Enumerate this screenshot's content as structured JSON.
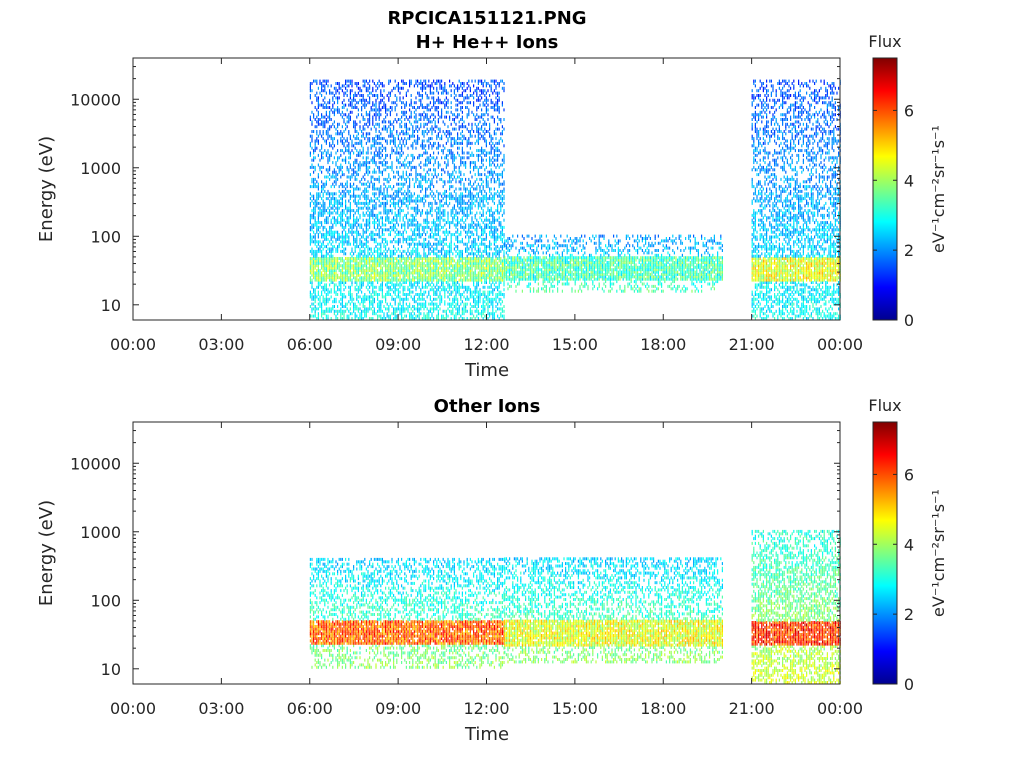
{
  "figure": {
    "title_line1": "RPCICA151121.PNG"
  },
  "panels": [
    {
      "title": "H+ He++ Ions",
      "xlabel": "Time",
      "ylabel": "Energy (eV)",
      "colorbar": {
        "title": "Flux",
        "units": "eV⁻¹cm⁻²sr⁻¹s⁻¹",
        "ticks": [
          "0",
          "2",
          "4",
          "6"
        ]
      }
    },
    {
      "title": "Other Ions",
      "xlabel": "Time",
      "ylabel": "Energy (eV)",
      "colorbar": {
        "title": "Flux",
        "units": "eV⁻¹cm⁻²sr⁻¹s⁻¹",
        "ticks": [
          "0",
          "2",
          "4",
          "6"
        ]
      }
    }
  ],
  "chart_data": [
    {
      "type": "heatmap",
      "title": "H+ He++ Ions",
      "xlabel": "Time",
      "ylabel": "Energy (eV)",
      "x_ticks": [
        "00:00",
        "03:00",
        "06:00",
        "09:00",
        "12:00",
        "15:00",
        "18:00",
        "21:00",
        "00:00"
      ],
      "x_range_hours": [
        0,
        24
      ],
      "y_scale": "log",
      "y_ticks": [
        10,
        100,
        1000,
        10000
      ],
      "y_range": [
        6,
        40000
      ],
      "colormap": "jet",
      "color_range": [
        0,
        7.5
      ],
      "colorbar_ticks": [
        0,
        2,
        4,
        6
      ],
      "colorbar_label": "Flux",
      "data_segments": [
        {
          "start_h": 6.0,
          "end_h": 12.6,
          "emin": 6,
          "emax": 18000,
          "low_band_flux": 3.8,
          "high_flux": 1.5,
          "density": 0.65
        },
        {
          "start_h": 12.6,
          "end_h": 20.0,
          "emin": 15,
          "emax": 100,
          "low_band_flux": 3.3,
          "high_flux": 2.0,
          "density": 0.35
        },
        {
          "start_h": 21.0,
          "end_h": 24.0,
          "emin": 6,
          "emax": 18000,
          "low_band_flux": 4.5,
          "high_flux": 1.5,
          "density": 0.65
        }
      ],
      "grid": false
    },
    {
      "type": "heatmap",
      "title": "Other Ions",
      "xlabel": "Time",
      "ylabel": "Energy (eV)",
      "x_ticks": [
        "00:00",
        "03:00",
        "06:00",
        "09:00",
        "12:00",
        "15:00",
        "18:00",
        "21:00",
        "00:00"
      ],
      "x_range_hours": [
        0,
        24
      ],
      "y_scale": "log",
      "y_ticks": [
        10,
        100,
        1000,
        10000
      ],
      "y_range": [
        6,
        40000
      ],
      "colormap": "jet",
      "color_range": [
        0,
        7.5
      ],
      "colorbar_ticks": [
        0,
        2,
        4,
        6
      ],
      "colorbar_label": "Flux",
      "data_segments": [
        {
          "start_h": 6.0,
          "end_h": 12.6,
          "emin": 10,
          "emax": 400,
          "low_band_flux": 5.8,
          "high_flux": 2.5,
          "density": 0.5
        },
        {
          "start_h": 12.6,
          "end_h": 20.0,
          "emin": 12,
          "emax": 400,
          "low_band_flux": 4.5,
          "high_flux": 2.5,
          "density": 0.5
        },
        {
          "start_h": 21.0,
          "end_h": 24.0,
          "emin": 6,
          "emax": 1000,
          "low_band_flux": 6.2,
          "high_flux": 3.0,
          "density": 0.7
        }
      ],
      "grid": false
    }
  ]
}
